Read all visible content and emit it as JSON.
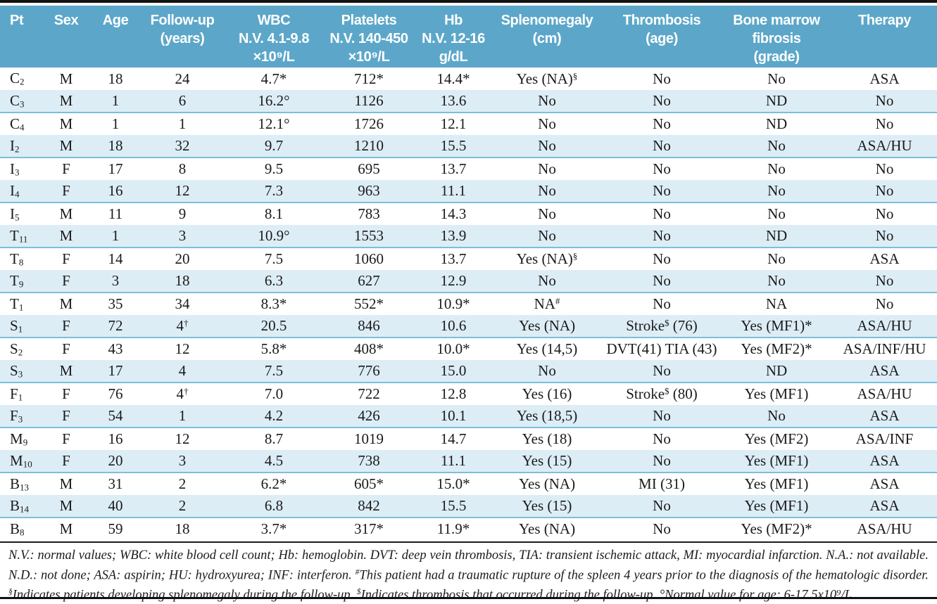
{
  "colors": {
    "header_background": "#5ca7c9",
    "header_text": "#ffffff",
    "shaded_row_background": "#ddedf6",
    "row_separator": "#7ac0dc",
    "rule": "#121212",
    "body_text": "#1a1a1a"
  },
  "table": {
    "columns": [
      {
        "key": "pt",
        "label": [
          "Pt"
        ]
      },
      {
        "key": "sex",
        "label": [
          "Sex"
        ]
      },
      {
        "key": "age",
        "label": [
          "Age"
        ]
      },
      {
        "key": "followup",
        "label": [
          "Follow-up",
          "(years)"
        ]
      },
      {
        "key": "wbc",
        "label": [
          "WBC",
          "N.V. 4.1-9.8",
          "×10⁹/L"
        ]
      },
      {
        "key": "platelets",
        "label": [
          "Platelets",
          "N.V. 140-450",
          "×10⁹/L"
        ]
      },
      {
        "key": "hb",
        "label": [
          "Hb",
          "N.V. 12-16",
          "g/dL"
        ]
      },
      {
        "key": "splenomegaly",
        "label": [
          "Splenomegaly",
          "(cm)"
        ]
      },
      {
        "key": "thrombosis",
        "label": [
          "Thrombosis",
          "(age)"
        ]
      },
      {
        "key": "fibrosis",
        "label": [
          "Bone marrow",
          "fibrosis",
          "(grade)"
        ]
      },
      {
        "key": "therapy",
        "label": [
          "Therapy"
        ]
      }
    ],
    "rows": [
      [
        "C_{2}",
        "M",
        "18",
        "24",
        "4.7*",
        "712*",
        "14.4*",
        "Yes (NA)^{§}",
        "No",
        "No",
        "ASA"
      ],
      [
        "C_{3}",
        "M",
        "1",
        "6",
        "16.2°",
        "1126",
        "13.6",
        "No",
        "No",
        "ND",
        "No"
      ],
      [
        "C_{4}",
        "M",
        "1",
        "1",
        "12.1°",
        "1726",
        "12.1",
        "No",
        "No",
        "ND",
        "No"
      ],
      [
        "I_{2}",
        "M",
        "18",
        "32",
        "9.7",
        "1210",
        "15.5",
        "No",
        "No",
        "No",
        "ASA/HU"
      ],
      [
        "I_{3}",
        "F",
        "17",
        "8",
        "9.5",
        "695",
        "13.7",
        "No",
        "No",
        "No",
        "No"
      ],
      [
        "I_{4}",
        "F",
        "16",
        "12",
        "7.3",
        "963",
        "11.1",
        "No",
        "No",
        "No",
        "No"
      ],
      [
        "I_{5}",
        "M",
        "11",
        "9",
        "8.1",
        "783",
        "14.3",
        "No",
        "No",
        "No",
        "No"
      ],
      [
        "T_{11}",
        "M",
        "1",
        "3",
        "10.9°",
        "1553",
        "13.9",
        "No",
        "No",
        "ND",
        "No"
      ],
      [
        "T_{8}",
        "F",
        "14",
        "20",
        "7.5",
        "1060",
        "13.7",
        "Yes (NA)^{§}",
        "No",
        "No",
        "ASA"
      ],
      [
        "T_{9}",
        "F",
        "3",
        "18",
        "6.3",
        "627",
        "12.9",
        "No",
        "No",
        "No",
        "No"
      ],
      [
        "T_{1}",
        "M",
        "35",
        "34",
        "8.3*",
        "552*",
        "10.9*",
        "NA^{#}",
        "No",
        "NA",
        "No"
      ],
      [
        "S_{1}",
        "F",
        "72",
        "4^{†}",
        "20.5",
        "846",
        "10.6",
        "Yes (NA)",
        "Stroke^{$} (76)",
        "Yes (MF1)*",
        "ASA/HU"
      ],
      [
        "S_{2}",
        "F",
        "43",
        "12",
        "5.8*",
        "408*",
        "10.0*",
        "Yes (14,5)",
        "DVT(41) TIA (43)",
        "Yes (MF2)*",
        "ASA/INF/HU"
      ],
      [
        "S_{3}",
        "M",
        "17",
        "4",
        "7.5",
        "776",
        "15.0",
        "No",
        "No",
        "ND",
        "ASA"
      ],
      [
        "F_{1}",
        "F",
        "76",
        "4^{†}",
        "7.0",
        "722",
        "12.8",
        "Yes (16)",
        "Stroke^{$} (80)",
        "Yes (MF1)",
        "ASA/HU"
      ],
      [
        "F_{3}",
        "F",
        "54",
        "1",
        "4.2",
        "426",
        "10.1",
        "Yes (18,5)",
        "No",
        "No",
        "ASA"
      ],
      [
        "M_{9}",
        "F",
        "16",
        "12",
        "8.7",
        "1019",
        "14.7",
        "Yes (18)",
        "No",
        "Yes (MF2)",
        "ASA/INF"
      ],
      [
        "M_{10}",
        "F",
        "20",
        "3",
        "4.5",
        "738",
        "11.1",
        "Yes (15)",
        "No",
        "Yes (MF1)",
        "ASA"
      ],
      [
        "B_{13}",
        "M",
        "31",
        "2",
        "6.2*",
        "605*",
        "15.0*",
        "Yes (NA)",
        "MI (31)",
        "Yes (MF1)",
        "ASA"
      ],
      [
        "B_{14}",
        "M",
        "40",
        "2",
        "6.8",
        "842",
        "15.5",
        "Yes (15)",
        "No",
        "Yes (MF1)",
        "ASA"
      ],
      [
        "B_{8}",
        "M",
        "59",
        "18",
        "3.7*",
        "317*",
        "11.9*",
        "Yes (NA)",
        "No",
        "Yes (MF2)*",
        "ASA/HU"
      ]
    ]
  },
  "footnote": "N.V.: normal values; WBC: white blood cell count; Hb: hemoglobin. DVT: deep vein thrombosis, TIA: transient ischemic attack, MI: myocardial infarction. N.A.: not available. N.D.: not done; ASA: aspirin; HU: hydroxyurea; INF: interferon. ^{#}This patient had a traumatic rupture of the spleen 4 years prior to the diagnosis of the hematologic disorder. ^{§}Indicates patients developing splenomegaly during the follow-up. ^{$}Indicates thrombosis that occurred during the follow-up. °Normal value for age: 6-17.5x10⁹/L."
}
